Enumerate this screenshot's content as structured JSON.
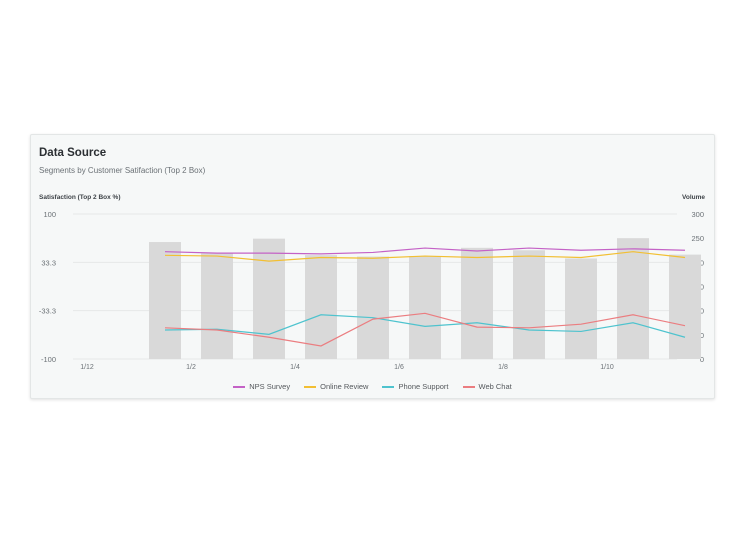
{
  "header": {
    "title": "Data Source",
    "subtitle": "Segments by Customer Satifaction (Top 2 Box)"
  },
  "chart_data": {
    "type": "bar+line",
    "title": "Data Source",
    "subtitle": "Segments by Customer Satifaction (Top 2 Box)",
    "ylabel": "Satisfaction (Top 2 Box %)",
    "y2label": "Volume",
    "ylim": [
      -100,
      100
    ],
    "y2lim": [
      0,
      300
    ],
    "yticks": [
      "100",
      "33.3",
      "-33.3",
      "-100"
    ],
    "y2ticks": [
      "300",
      "250",
      "200",
      "150",
      "100",
      "50",
      "0"
    ],
    "x_tick_labels": [
      "1/12",
      "1/2",
      "1/4",
      "1/6",
      "1/8",
      "1/10"
    ],
    "bars": {
      "name": "Volume",
      "color": "#d9d9d9",
      "values": [
        242,
        219,
        249,
        215,
        212,
        213,
        230,
        225,
        208,
        250,
        216
      ]
    },
    "series": [
      {
        "name": "NPS Survey",
        "color": "#c462c6",
        "values": [
          48,
          46,
          46,
          45,
          47,
          53,
          49,
          53,
          50,
          52,
          50
        ]
      },
      {
        "name": "Online Review",
        "color": "#f2bf33",
        "values": [
          43,
          42,
          35,
          40,
          39,
          42,
          40,
          42,
          40,
          48,
          40
        ]
      },
      {
        "name": "Phone Support",
        "color": "#4ec3ce",
        "values": [
          -60,
          -59,
          -66,
          -39,
          -43,
          -55,
          -50,
          -60,
          -62,
          -50,
          -70
        ]
      },
      {
        "name": "Web Chat",
        "color": "#eb7d80",
        "values": [
          -57,
          -60,
          -70,
          -82,
          -45,
          -37,
          -56,
          -57,
          -52,
          -39,
          -54
        ]
      }
    ],
    "grid": true,
    "legend_position": "bottom"
  }
}
